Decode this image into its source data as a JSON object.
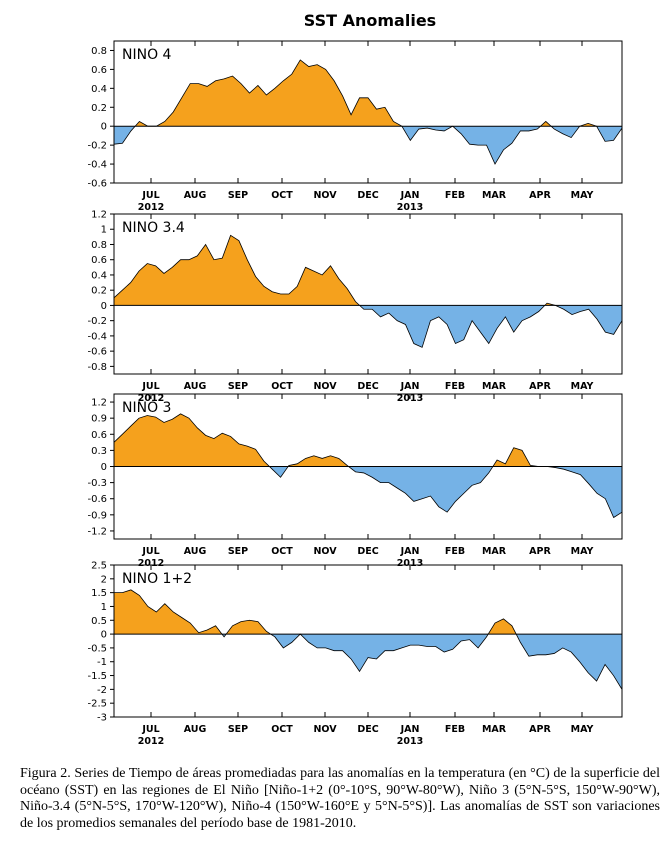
{
  "figure_title": "SST Anomalies",
  "caption": "Figura 2. Series de Tiempo de áreas promediadas para las anomalías en la temperatura (en °C) de la superficie del océano (SST) en las regiones de El Niño [Niño-1+2 (0°-10°S, 90°W-80°W), Niño 3 (5°N-5°S, 150°W-90°W), Niño-3.4 (5°N-5°S, 170°W-120°W), Niño-4 (150°W-160°E y 5°N-5°S)]. Las anomalías de SST son variaciones de los promedios semanales del período base de 1981-2010.",
  "colors": {
    "positive": "#f5a11d",
    "negative": "#75b2e6",
    "axis": "#000000"
  },
  "chart_data": [
    {
      "type": "area",
      "title": "NINO 4",
      "x_labels": [
        "JUL",
        "AUG",
        "SEP",
        "OCT",
        "NOV",
        "DEC",
        "JAN",
        "FEB",
        "MAR",
        "APR",
        "MAY"
      ],
      "year_labels": [
        "2012",
        "2013"
      ],
      "ylim": [
        -0.6,
        0.9
      ],
      "yticks": [
        -0.6,
        -0.4,
        -0.2,
        0,
        0.2,
        0.4,
        0.6,
        0.8
      ],
      "ytick_labels": [
        "-0.6",
        "-0.4",
        "-0.2",
        "0",
        "0.2",
        "0.4",
        "0.6",
        "0.8"
      ],
      "values": [
        -0.19,
        -0.18,
        -0.05,
        0.05,
        0.0,
        0.0,
        0.05,
        0.15,
        0.3,
        0.45,
        0.45,
        0.42,
        0.48,
        0.5,
        0.53,
        0.45,
        0.35,
        0.43,
        0.33,
        0.4,
        0.48,
        0.55,
        0.7,
        0.63,
        0.65,
        0.6,
        0.48,
        0.32,
        0.12,
        0.3,
        0.3,
        0.18,
        0.2,
        0.05,
        0.0,
        -0.15,
        -0.03,
        -0.02,
        -0.04,
        -0.05,
        0.0,
        -0.08,
        -0.19,
        -0.2,
        -0.2,
        -0.4,
        -0.25,
        -0.18,
        -0.05,
        -0.05,
        -0.03,
        0.05,
        -0.03,
        -0.08,
        -0.12,
        0.0,
        0.03,
        0.0,
        -0.16,
        -0.15,
        -0.02
      ]
    },
    {
      "type": "area",
      "title": "NINO 3.4",
      "x_labels": [
        "JUL",
        "AUG",
        "SEP",
        "OCT",
        "NOV",
        "DEC",
        "JAN",
        "FEB",
        "MAR",
        "APR",
        "MAY"
      ],
      "year_labels": [
        "2012",
        "2013"
      ],
      "ylim": [
        -0.9,
        1.2
      ],
      "yticks": [
        -0.8,
        -0.6,
        -0.4,
        -0.2,
        0,
        0.2,
        0.4,
        0.6,
        0.8,
        1,
        1.2
      ],
      "ytick_labels": [
        "-0.8",
        "-0.6",
        "-0.4",
        "-0.2",
        "0",
        "0.2",
        "0.4",
        "0.6",
        "0.8",
        "1",
        "1.2"
      ],
      "values": [
        0.1,
        0.2,
        0.3,
        0.45,
        0.55,
        0.52,
        0.42,
        0.5,
        0.6,
        0.6,
        0.65,
        0.8,
        0.6,
        0.62,
        0.92,
        0.85,
        0.6,
        0.38,
        0.25,
        0.18,
        0.15,
        0.15,
        0.25,
        0.5,
        0.45,
        0.4,
        0.52,
        0.35,
        0.22,
        0.05,
        -0.05,
        -0.05,
        -0.15,
        -0.1,
        -0.2,
        -0.25,
        -0.5,
        -0.55,
        -0.2,
        -0.15,
        -0.25,
        -0.5,
        -0.45,
        -0.2,
        -0.35,
        -0.5,
        -0.3,
        -0.15,
        -0.35,
        -0.2,
        -0.15,
        -0.08,
        0.03,
        0.0,
        -0.05,
        -0.12,
        -0.08,
        -0.05,
        -0.18,
        -0.35,
        -0.38,
        -0.2
      ]
    },
    {
      "type": "area",
      "title": "NINO 3",
      "x_labels": [
        "JUL",
        "AUG",
        "SEP",
        "OCT",
        "NOV",
        "DEC",
        "JAN",
        "FEB",
        "MAR",
        "APR",
        "MAY"
      ],
      "year_labels": [
        "2012",
        "2013"
      ],
      "ylim": [
        -1.35,
        1.35
      ],
      "yticks": [
        -1.2,
        -0.9,
        -0.6,
        -0.3,
        0,
        0.3,
        0.6,
        0.9,
        1.2
      ],
      "ytick_labels": [
        "-1.2",
        "-0.9",
        "-0.6",
        "-0.3",
        "0",
        "0.3",
        "0.6",
        "0.9",
        "1.2"
      ],
      "values": [
        0.45,
        0.6,
        0.75,
        0.9,
        0.95,
        0.92,
        0.82,
        0.88,
        0.98,
        0.9,
        0.72,
        0.58,
        0.52,
        0.62,
        0.56,
        0.42,
        0.38,
        0.32,
        0.1,
        -0.05,
        -0.2,
        0.02,
        0.05,
        0.15,
        0.2,
        0.15,
        0.2,
        0.15,
        0.02,
        -0.1,
        -0.12,
        -0.2,
        -0.3,
        -0.3,
        -0.4,
        -0.5,
        -0.65,
        -0.6,
        -0.55,
        -0.75,
        -0.85,
        -0.65,
        -0.5,
        -0.35,
        -0.3,
        -0.12,
        0.12,
        0.05,
        0.35,
        0.3,
        0.02,
        0.0,
        0.0,
        -0.02,
        -0.05,
        -0.1,
        -0.15,
        -0.32,
        -0.5,
        -0.6,
        -0.95,
        -0.85
      ]
    },
    {
      "type": "area",
      "title": "NINO 1+2",
      "x_labels": [
        "JUL",
        "AUG",
        "SEP",
        "OCT",
        "NOV",
        "DEC",
        "JAN",
        "FEB",
        "MAR",
        "APR",
        "MAY"
      ],
      "year_labels": [
        "2012",
        "2013"
      ],
      "ylim": [
        -3,
        2.5
      ],
      "yticks": [
        -3,
        -2.5,
        -2,
        -1.5,
        -1,
        -0.5,
        0,
        0.5,
        1,
        1.5,
        2,
        2.5
      ],
      "ytick_labels": [
        "-3",
        "-2.5",
        "-2",
        "-1.5",
        "-1",
        "-0.5",
        "0",
        "0.5",
        "1",
        "1.5",
        "2",
        "2.5"
      ],
      "values": [
        1.5,
        1.5,
        1.6,
        1.4,
        1.0,
        0.8,
        1.1,
        0.8,
        0.6,
        0.4,
        0.05,
        0.15,
        0.3,
        -0.1,
        0.3,
        0.45,
        0.5,
        0.45,
        0.1,
        -0.1,
        -0.5,
        -0.3,
        0.0,
        -0.3,
        -0.5,
        -0.5,
        -0.6,
        -0.6,
        -0.9,
        -1.35,
        -0.85,
        -0.9,
        -0.6,
        -0.6,
        -0.5,
        -0.4,
        -0.4,
        -0.45,
        -0.45,
        -0.65,
        -0.55,
        -0.25,
        -0.2,
        -0.5,
        -0.1,
        0.4,
        0.55,
        0.3,
        -0.3,
        -0.8,
        -0.75,
        -0.75,
        -0.7,
        -0.5,
        -0.65,
        -1.0,
        -1.4,
        -1.7,
        -1.1,
        -1.5,
        -2.0
      ]
    }
  ]
}
